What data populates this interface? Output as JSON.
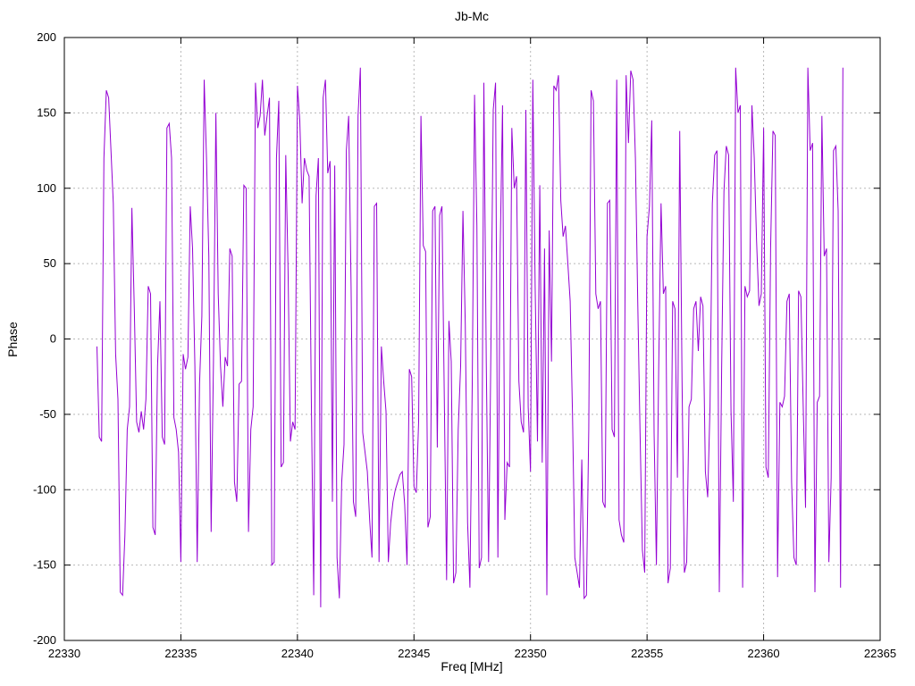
{
  "chart_data": {
    "type": "line",
    "title": "Jb-Mc",
    "xlabel": "Freq [MHz]",
    "ylabel": "Phase",
    "xlim": [
      22330,
      22365
    ],
    "ylim": [
      -200,
      200
    ],
    "x_ticks": [
      22330,
      22335,
      22340,
      22345,
      22350,
      22355,
      22360,
      22365
    ],
    "y_ticks": [
      -200,
      -150,
      -100,
      -50,
      0,
      50,
      100,
      150,
      200
    ],
    "grid": true,
    "legend": "none",
    "line_color": "#9400d3",
    "grid_color": "#b8b8b8",
    "background_color": "#ffffff",
    "series": [
      {
        "name": "Jb-Mc phase",
        "x_start": 22331.4,
        "x_step": 0.1,
        "values": [
          -5,
          -65,
          -68,
          120,
          165,
          160,
          125,
          90,
          -10,
          -40,
          -168,
          -170,
          -130,
          -60,
          -45,
          87,
          20,
          -55,
          -62,
          -48,
          -60,
          -40,
          35,
          30,
          -125,
          -130,
          -18,
          25,
          -65,
          -70,
          140,
          143,
          120,
          -52,
          -60,
          -75,
          -148,
          -10,
          -20,
          -12,
          88,
          60,
          -18,
          -148,
          -30,
          15,
          172,
          120,
          55,
          -128,
          -15,
          150,
          30,
          -18,
          -45,
          -12,
          -18,
          60,
          55,
          -95,
          -108,
          -30,
          -28,
          102,
          100,
          -128,
          -60,
          -45,
          170,
          140,
          148,
          172,
          135,
          148,
          160,
          -150,
          -148,
          120,
          158,
          -85,
          -82,
          122,
          45,
          -68,
          -55,
          -60,
          168,
          145,
          90,
          120,
          112,
          108,
          -45,
          -170,
          95,
          120,
          -178,
          160,
          172,
          110,
          118,
          -108,
          115,
          -145,
          -172,
          -95,
          -70,
          125,
          148,
          35,
          -108,
          -118,
          148,
          180,
          -62,
          -75,
          -88,
          -120,
          -145,
          88,
          90,
          -148,
          -5,
          -28,
          -48,
          -148,
          -122,
          -108,
          -100,
          -95,
          -90,
          -88,
          -110,
          -150,
          -20,
          -25,
          -98,
          -102,
          -55,
          148,
          62,
          58,
          -125,
          -118,
          85,
          88,
          -72,
          82,
          88,
          -38,
          -160,
          12,
          -15,
          -162,
          -155,
          -60,
          -18,
          85,
          10,
          -122,
          -165,
          -30,
          162,
          75,
          -152,
          -145,
          170,
          -15,
          -148,
          -5,
          152,
          170,
          -145,
          60,
          155,
          -120,
          -82,
          -85,
          140,
          100,
          108,
          -28,
          -55,
          -62,
          152,
          -45,
          -88,
          172,
          35,
          -68,
          102,
          -82,
          60,
          -170,
          72,
          -15,
          168,
          165,
          175,
          92,
          68,
          75,
          50,
          25,
          -50,
          -145,
          -155,
          -165,
          -80,
          -172,
          -170,
          -60,
          165,
          158,
          30,
          20,
          25,
          -108,
          -112,
          90,
          92,
          -60,
          -65,
          172,
          -120,
          -130,
          -135,
          175,
          130,
          178,
          172,
          120,
          25,
          -62,
          -140,
          -155,
          68,
          88,
          145,
          -62,
          -150,
          -18,
          90,
          30,
          35,
          -162,
          -152,
          25,
          20,
          -92,
          138,
          -28,
          -155,
          -148,
          -45,
          -40,
          20,
          25,
          -8,
          28,
          22,
          -88,
          -105,
          -45,
          90,
          122,
          125,
          -168,
          -20,
          98,
          128,
          122,
          -48,
          -108,
          180,
          150,
          155,
          -165,
          35,
          28,
          32,
          155,
          120,
          65,
          22,
          30,
          140,
          -85,
          -92,
          60,
          138,
          135,
          -158,
          -42,
          -45,
          -38,
          25,
          30,
          -95,
          -145,
          -150,
          32,
          28,
          -45,
          -112,
          180,
          125,
          130,
          -168,
          -42,
          -38,
          148,
          55,
          60,
          -148,
          -92,
          125,
          128,
          85,
          -165,
          180
        ]
      }
    ]
  }
}
